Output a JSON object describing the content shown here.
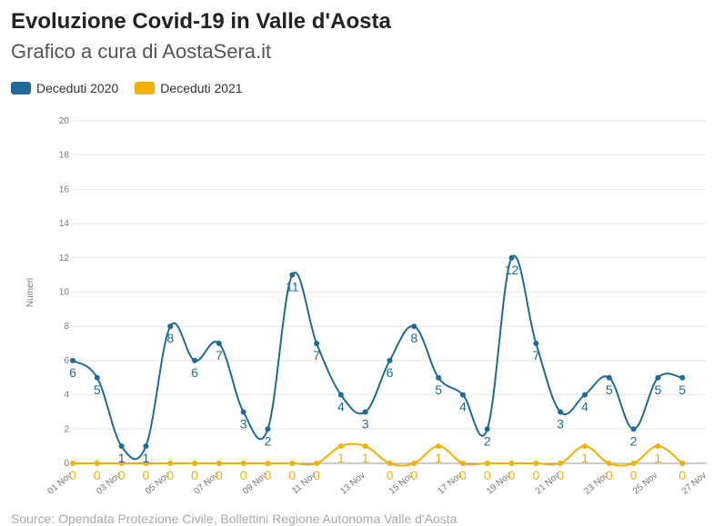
{
  "title": "Evoluzione Covid-19 in Valle d'Aosta",
  "subtitle": "Grafico a cura di AostaSera.it",
  "source": "Source: Opendata Protezione Civile, Bollettini Regione Autonoma Valle d'Aosta",
  "colors": {
    "series_2020": "#1f6a99",
    "series_2021": "#f2b100",
    "grid": "#e8e8e8"
  },
  "chart_data": {
    "type": "line",
    "ylabel": "Numeri",
    "xlabel": "",
    "ylim": [
      0,
      20
    ],
    "yticks": [
      0,
      2,
      4,
      6,
      8,
      10,
      12,
      14,
      16,
      18,
      20
    ],
    "xticks": [
      "01 Nov",
      "03 Nov",
      "05 Nov",
      "07 Nov",
      "09 Nov",
      "11 Nov",
      "13 Nov",
      "15 Nov",
      "17 Nov",
      "19 Nov",
      "21 Nov",
      "23 Nov",
      "25 Nov",
      "27 Nov"
    ],
    "x": [
      "01 Nov",
      "02 Nov",
      "03 Nov",
      "04 Nov",
      "05 Nov",
      "06 Nov",
      "07 Nov",
      "08 Nov",
      "09 Nov",
      "10 Nov",
      "11 Nov",
      "12 Nov",
      "13 Nov",
      "14 Nov",
      "15 Nov",
      "16 Nov",
      "17 Nov",
      "18 Nov",
      "19 Nov",
      "20 Nov",
      "21 Nov",
      "22 Nov",
      "23 Nov",
      "24 Nov",
      "25 Nov",
      "26 Nov"
    ],
    "legend_position": "top-left",
    "grid": true,
    "series": [
      {
        "name": "Deceduti 2020",
        "values": [
          6,
          5,
          1,
          1,
          8,
          6,
          7,
          3,
          2,
          11,
          7,
          4,
          3,
          6,
          8,
          5,
          4,
          2,
          12,
          7,
          3,
          4,
          5,
          2,
          5,
          5
        ]
      },
      {
        "name": "Deceduti 2021",
        "values": [
          0,
          0,
          0,
          0,
          0,
          0,
          0,
          0,
          0,
          0,
          0,
          1,
          1,
          0,
          0,
          1,
          0,
          0,
          0,
          0,
          0,
          1,
          0,
          0,
          1,
          0
        ]
      }
    ]
  }
}
